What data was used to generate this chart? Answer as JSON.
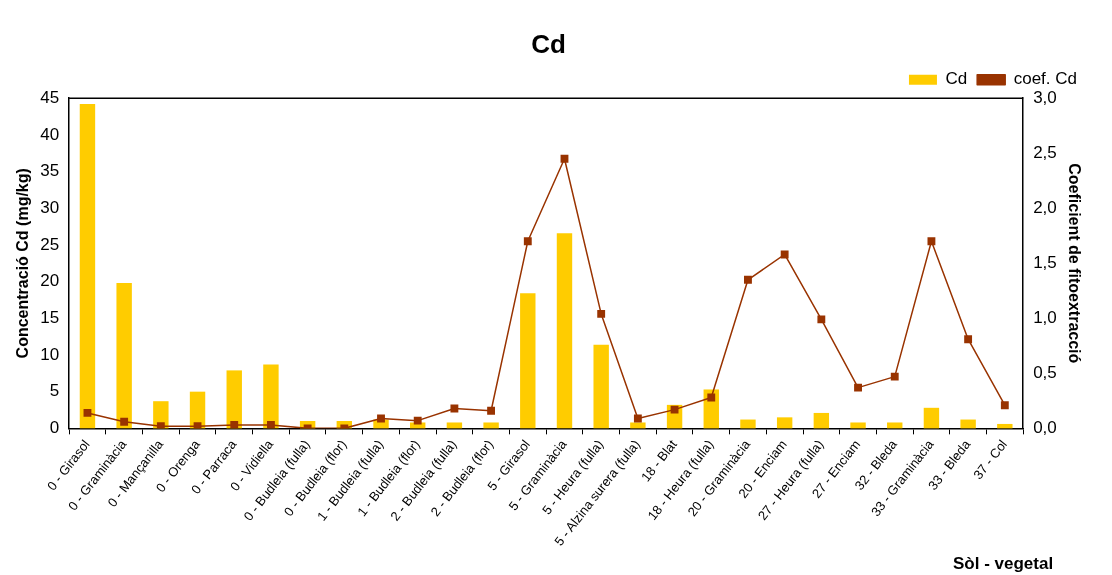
{
  "chart_data": {
    "type": "bar",
    "title": "Cd",
    "xlabel": "Sòl - vegetal",
    "ylabel": "Concentració Cd (mg/kg)",
    "y2label": "Coeficient de fitoextracció",
    "categories": [
      "0 - Girasol",
      "0 - Graminàcia",
      "0 - Mançanilla",
      "0 - Orenga",
      "0 - Parraca",
      "0 - Vidiella",
      "0 - Budleia (fulla)",
      "0 - Budleia (flor)",
      "1 - Budleia (fulla)",
      "1 - Budleia (flor)",
      "2 - Budleia (fulla)",
      "2 - Budleia (flor)",
      "5 - Girasol",
      "5 - Graminàcia",
      "5 - Heura (fulla)",
      "5 - Alzina surera (fulla)",
      "18 - Blat",
      "18 - Heura (fulla)",
      "20 - Graminàcia",
      "20 - Enciam",
      "27 - Heura (fulla)",
      "27 - Enciam",
      "32 - Bleda",
      "33 - Graminàcia",
      "33 - Bleda",
      "37 - Col"
    ],
    "series": [
      {
        "name": "Cd",
        "color": "#ffcc00",
        "values": [
          44.2,
          19.8,
          3.7,
          5.0,
          7.9,
          8.7,
          1.0,
          1.0,
          1.2,
          0.8,
          0.8,
          0.8,
          18.4,
          26.6,
          11.4,
          0.8,
          3.2,
          5.3,
          1.2,
          1.5,
          2.1,
          0.8,
          0.8,
          2.8,
          1.2,
          0.6
        ]
      },
      {
        "name": "coef. Cd",
        "type": "line",
        "axis": "y2",
        "color": "#993300",
        "marker": "square",
        "values": [
          0.14,
          0.06,
          0.02,
          0.02,
          0.03,
          0.03,
          0.0,
          0.0,
          0.09,
          0.07,
          0.18,
          0.16,
          1.7,
          2.45,
          1.04,
          0.09,
          0.17,
          0.28,
          1.35,
          1.58,
          0.99,
          0.37,
          0.47,
          1.7,
          0.81,
          0.21
        ]
      }
    ],
    "ylim": [
      0,
      45
    ],
    "yticks": [
      0,
      5,
      10,
      15,
      20,
      25,
      30,
      35,
      40,
      45
    ],
    "y2lim": [
      0,
      3
    ],
    "y2ticks": [
      {
        "value": 0,
        "label": "0,0"
      },
      {
        "value": 0.5,
        "label": "0,5"
      },
      {
        "value": 1,
        "label": "1,0"
      },
      {
        "value": 1.5,
        "label": "1,5"
      },
      {
        "value": 2,
        "label": "2,0"
      },
      {
        "value": 2.5,
        "label": "2,5"
      },
      {
        "value": 3,
        "label": "3,0"
      }
    ],
    "grid": false,
    "legend": "top right"
  }
}
